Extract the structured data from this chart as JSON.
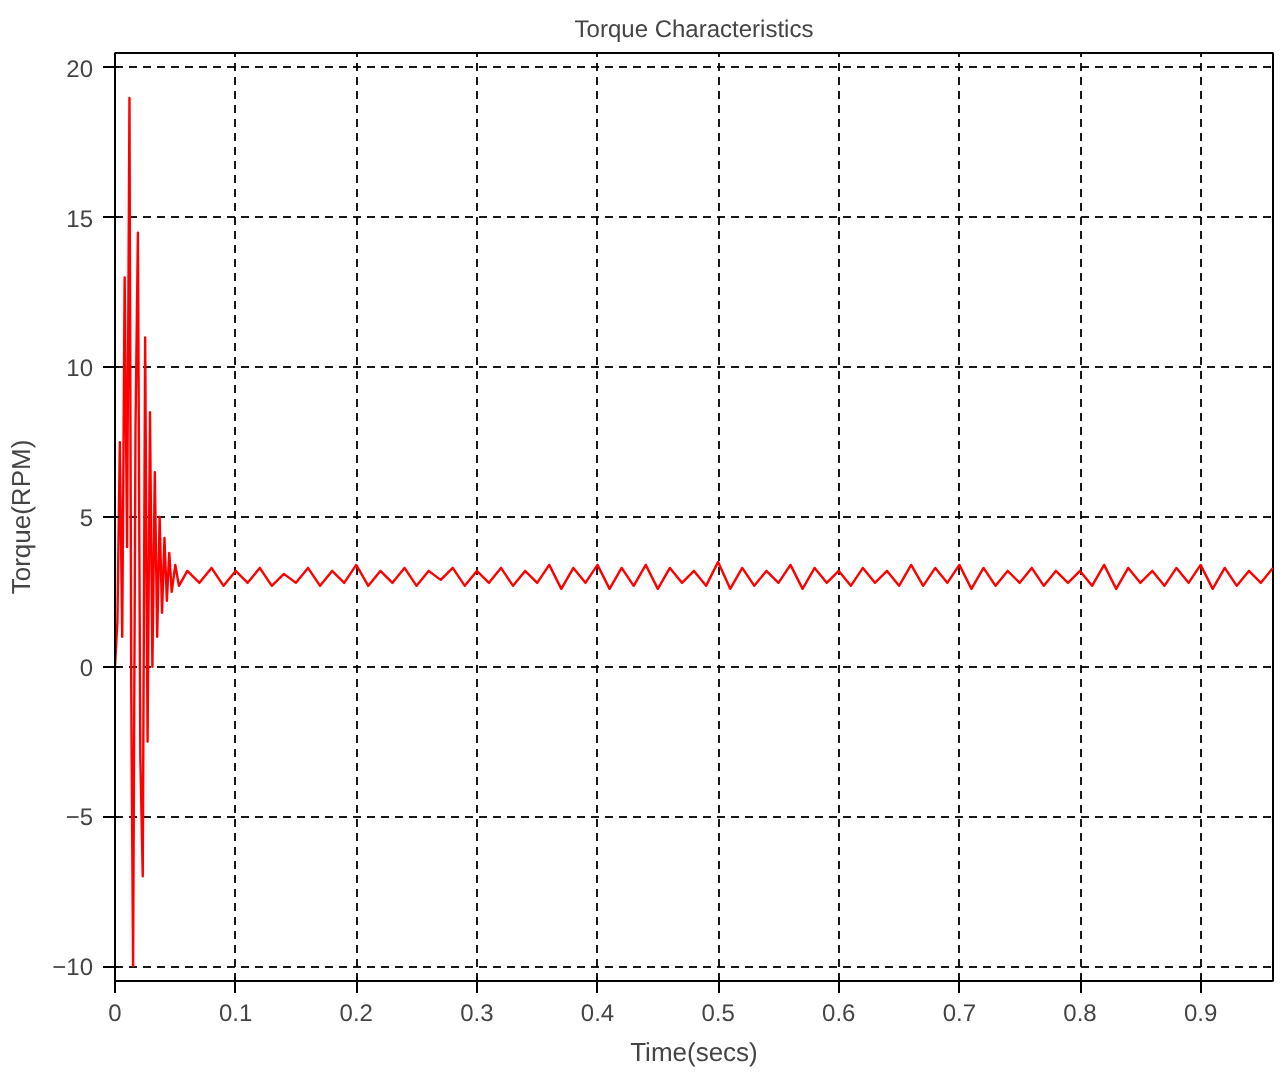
{
  "chart_data": {
    "type": "line",
    "title": "Torque Characteristics",
    "xlabel": "Time(secs)",
    "ylabel": "Torque(RPM)",
    "xlim": [
      0,
      0.96
    ],
    "ylim": [
      -10.5,
      20.5
    ],
    "xticks": [
      0,
      0.1,
      0.2,
      0.3,
      0.4,
      0.5,
      0.6,
      0.7,
      0.8,
      0.9
    ],
    "yticks": [
      -10,
      -5,
      0,
      5,
      10,
      15,
      20
    ],
    "grid": true,
    "series": [
      {
        "color": "#ff0000",
        "x": [
          0,
          0.002,
          0.004,
          0.006,
          0.008,
          0.01,
          0.012,
          0.0135,
          0.015,
          0.017,
          0.019,
          0.021,
          0.023,
          0.025,
          0.027,
          0.029,
          0.031,
          0.033,
          0.035,
          0.037,
          0.039,
          0.041,
          0.043,
          0.045,
          0.047,
          0.05,
          0.053,
          0.06,
          0.07,
          0.08,
          0.09,
          0.1,
          0.11,
          0.12,
          0.13,
          0.14,
          0.15,
          0.16,
          0.17,
          0.18,
          0.19,
          0.2,
          0.21,
          0.22,
          0.23,
          0.24,
          0.25,
          0.26,
          0.27,
          0.28,
          0.29,
          0.3,
          0.31,
          0.32,
          0.33,
          0.34,
          0.35,
          0.36,
          0.37,
          0.38,
          0.39,
          0.4,
          0.41,
          0.42,
          0.43,
          0.44,
          0.45,
          0.46,
          0.47,
          0.48,
          0.49,
          0.5,
          0.51,
          0.52,
          0.53,
          0.54,
          0.55,
          0.56,
          0.57,
          0.58,
          0.59,
          0.6,
          0.61,
          0.62,
          0.63,
          0.64,
          0.65,
          0.66,
          0.67,
          0.68,
          0.69,
          0.7,
          0.71,
          0.72,
          0.73,
          0.74,
          0.75,
          0.76,
          0.77,
          0.78,
          0.79,
          0.8,
          0.81,
          0.82,
          0.83,
          0.84,
          0.85,
          0.86,
          0.87,
          0.88,
          0.89,
          0.9,
          0.91,
          0.92,
          0.93,
          0.94,
          0.95,
          0.96
        ],
        "values": [
          0,
          1.5,
          7.5,
          1,
          13,
          4,
          19,
          -1,
          -10,
          8,
          14.5,
          -3,
          -7,
          11,
          -2.5,
          8.5,
          0,
          6.5,
          1,
          5,
          1.8,
          4.3,
          2.2,
          3.8,
          2.5,
          3.4,
          2.7,
          3.2,
          2.8,
          3.3,
          2.7,
          3.2,
          2.8,
          3.3,
          2.7,
          3.1,
          2.8,
          3.3,
          2.7,
          3.2,
          2.8,
          3.4,
          2.7,
          3.2,
          2.8,
          3.3,
          2.7,
          3.2,
          2.9,
          3.3,
          2.7,
          3.2,
          2.8,
          3.3,
          2.7,
          3.2,
          2.8,
          3.4,
          2.6,
          3.3,
          2.8,
          3.4,
          2.6,
          3.3,
          2.7,
          3.4,
          2.6,
          3.3,
          2.8,
          3.2,
          2.7,
          3.5,
          2.6,
          3.3,
          2.7,
          3.2,
          2.8,
          3.4,
          2.6,
          3.3,
          2.8,
          3.2,
          2.7,
          3.3,
          2.8,
          3.2,
          2.7,
          3.4,
          2.7,
          3.3,
          2.8,
          3.4,
          2.6,
          3.3,
          2.7,
          3.2,
          2.8,
          3.3,
          2.7,
          3.2,
          2.8,
          3.2,
          2.7,
          3.4,
          2.6,
          3.3,
          2.8,
          3.2,
          2.7,
          3.3,
          2.8,
          3.4,
          2.6,
          3.3,
          2.7,
          3.2,
          2.8,
          3.3
        ]
      }
    ]
  }
}
